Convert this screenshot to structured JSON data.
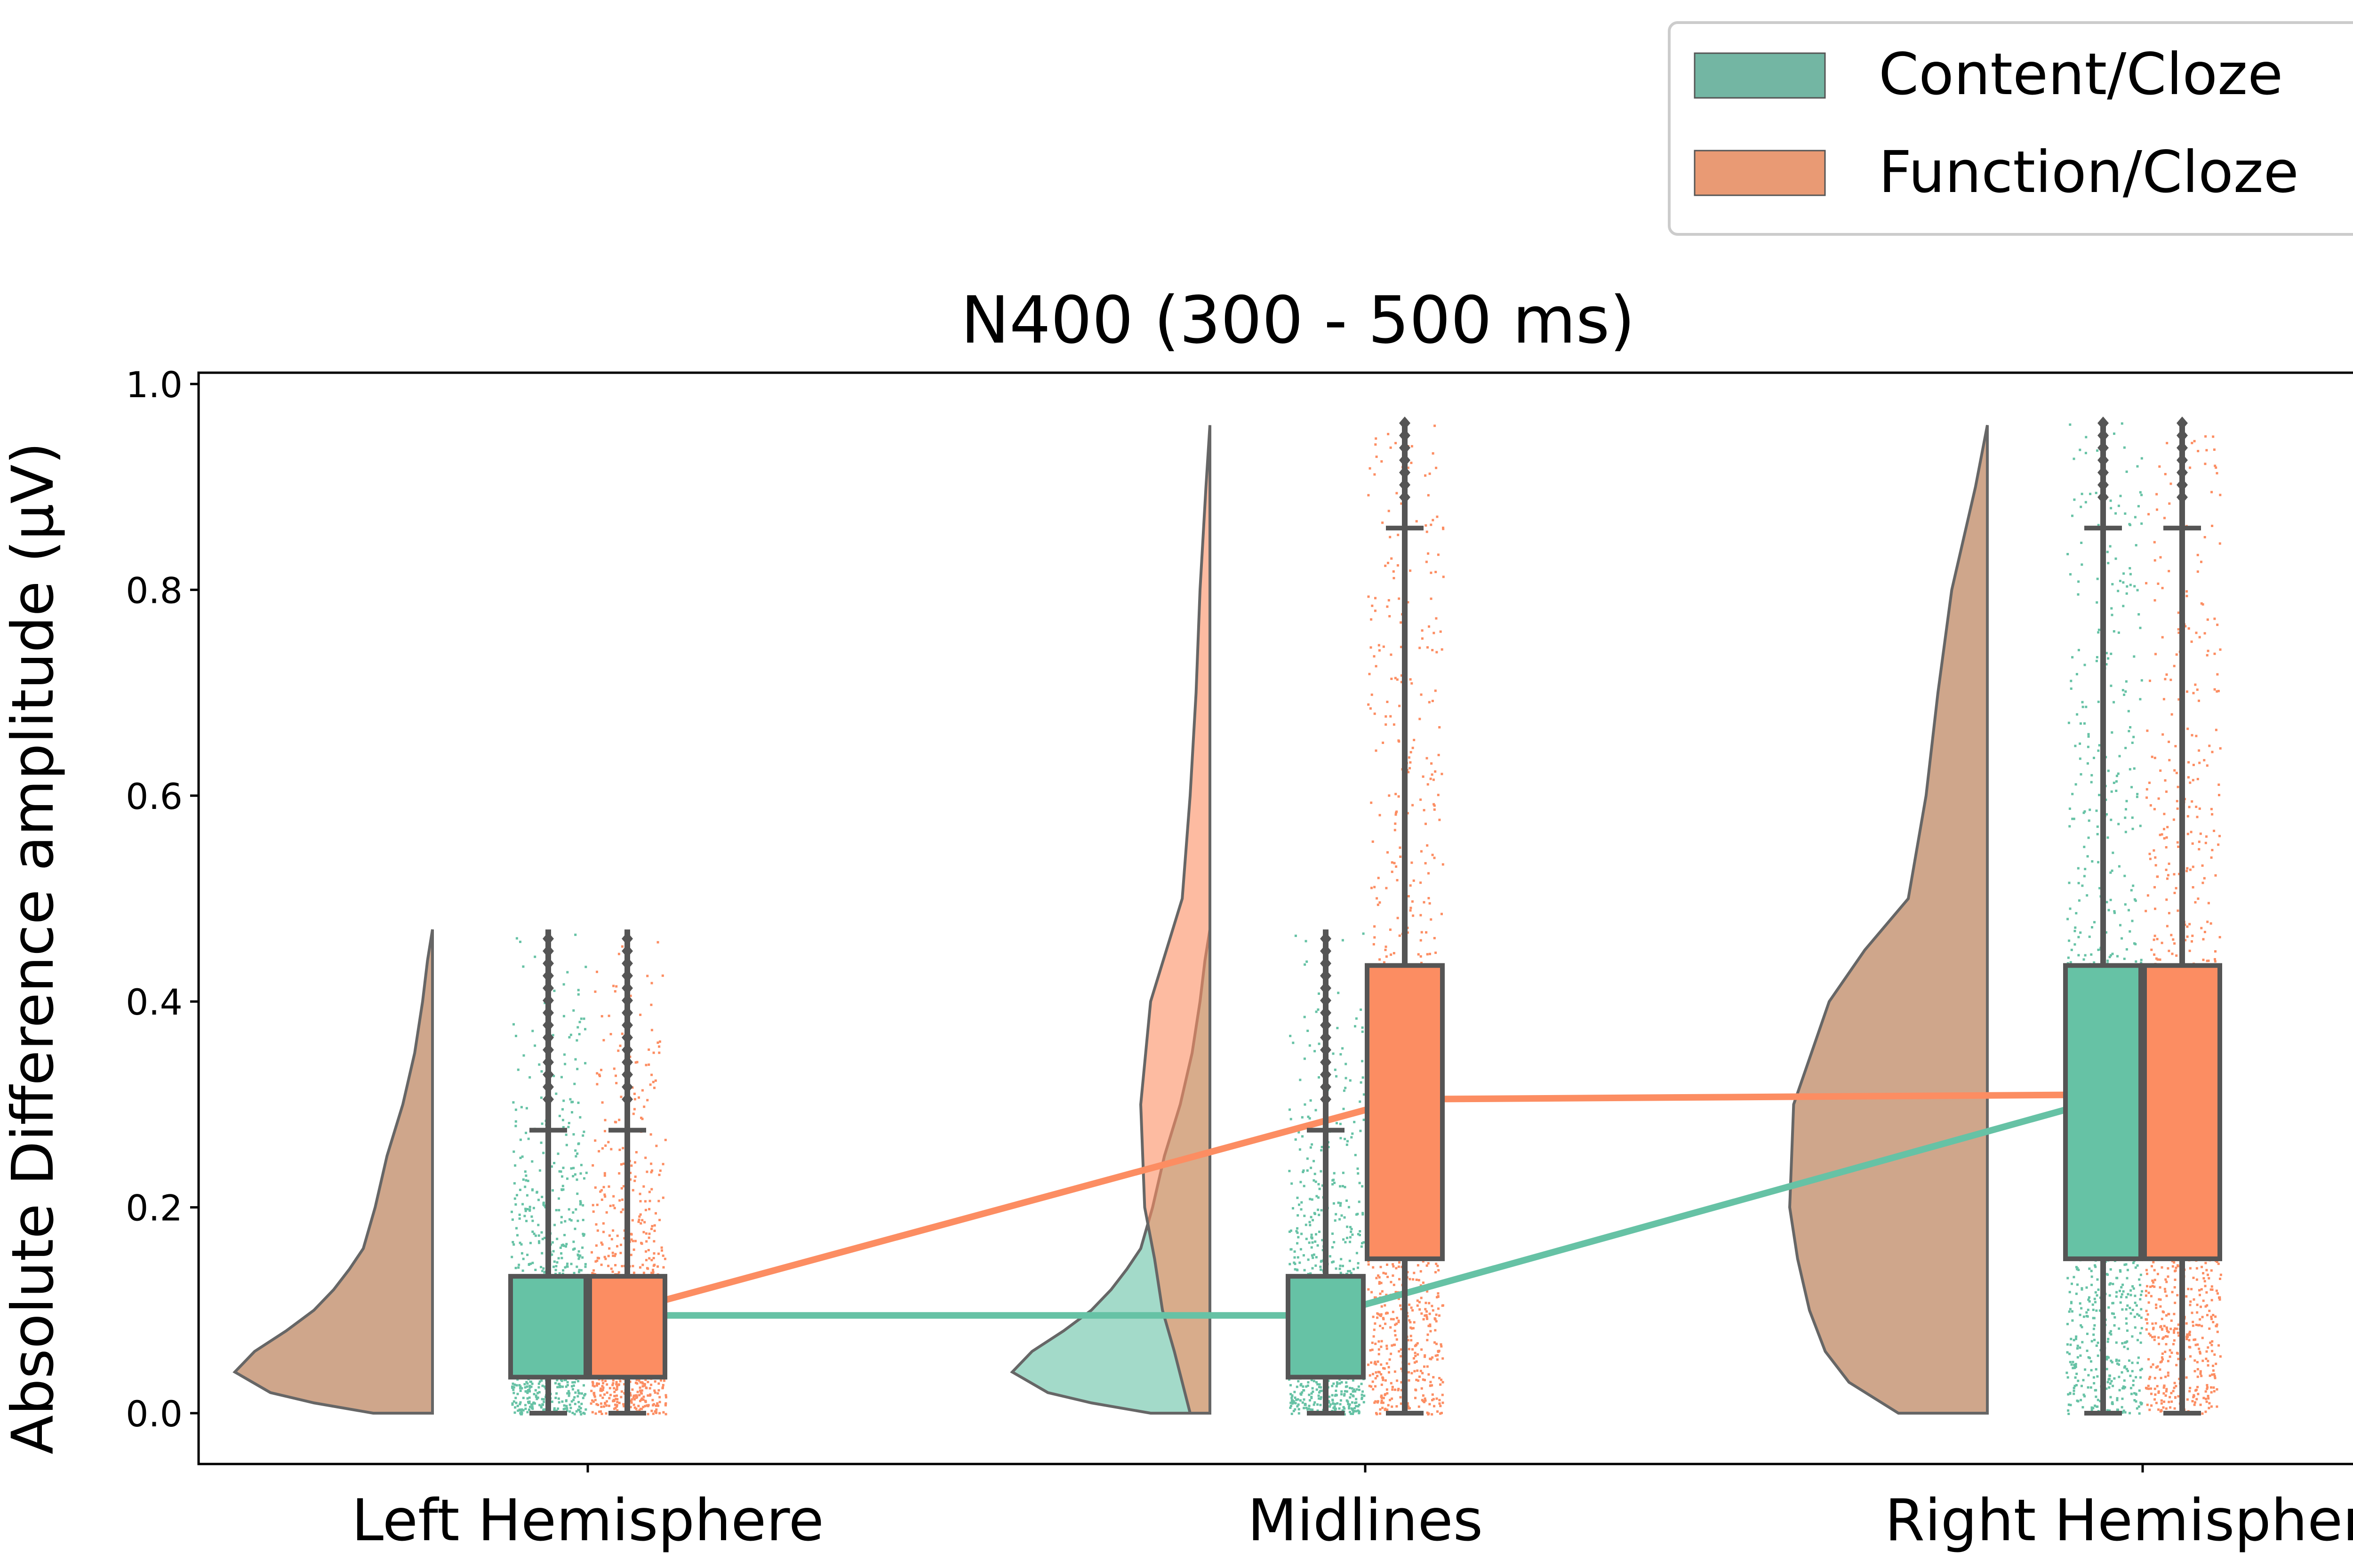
{
  "chart_data": {
    "type": "raincloud",
    "title": "N400 (300 - 500 ms)",
    "xlabel": "",
    "ylabel": "Absolute Difference amplitude (μV)",
    "categories": [
      "Left Hemisphere",
      "Midlines",
      "Right Hemisphere"
    ],
    "ylim": [
      -0.05,
      1.01
    ],
    "yticks": [
      0.0,
      0.2,
      0.4,
      0.6,
      0.8,
      1.0
    ],
    "ytick_labels": [
      "0.0",
      "0.2",
      "0.4",
      "0.6",
      "0.8",
      "1.0"
    ],
    "grid": false,
    "legend": {
      "position": "top-right",
      "entries": [
        "Content/Cloze",
        "Function/Cloze"
      ]
    },
    "colors": {
      "content": "#66c2a5",
      "function": "#fc8d62",
      "box_edge": "#555555",
      "cloud_overlap": "#cfa68b"
    },
    "series": [
      {
        "name": "Content/Cloze",
        "box": [
          {
            "category": "Left Hemisphere",
            "whisker_low": 0.0,
            "q1": 0.035,
            "median": 0.095,
            "q3": 0.133,
            "whisker_high": 0.275,
            "max": 0.47
          },
          {
            "category": "Midlines",
            "whisker_low": 0.0,
            "q1": 0.035,
            "median": 0.095,
            "q3": 0.133,
            "whisker_high": 0.275,
            "max": 0.47
          },
          {
            "category": "Right Hemisphere",
            "whisker_low": 0.0,
            "q1": 0.15,
            "median": 0.31,
            "q3": 0.435,
            "whisker_high": 0.86,
            "max": 0.965
          }
        ],
        "mean_line": [
          0.095,
          0.095,
          0.305
        ]
      },
      {
        "name": "Function/Cloze",
        "box": [
          {
            "category": "Left Hemisphere",
            "whisker_low": 0.0,
            "q1": 0.035,
            "median": 0.095,
            "q3": 0.133,
            "whisker_high": 0.275,
            "max": 0.47
          },
          {
            "category": "Midlines",
            "whisker_low": 0.0,
            "q1": 0.15,
            "median": 0.31,
            "q3": 0.435,
            "whisker_high": 0.86,
            "max": 0.965
          },
          {
            "category": "Right Hemisphere",
            "whisker_low": 0.0,
            "q1": 0.15,
            "median": 0.31,
            "q3": 0.435,
            "whisker_high": 0.86,
            "max": 0.965
          }
        ],
        "mean_line": [
          0.1,
          0.305,
          0.31
        ]
      }
    ],
    "density_profiles": [
      {
        "category": "Left Hemisphere",
        "series": "Content/Cloze",
        "style": "overlap",
        "y": [
          0.0,
          0.01,
          0.02,
          0.04,
          0.06,
          0.08,
          0.1,
          0.12,
          0.14,
          0.16,
          0.2,
          0.25,
          0.3,
          0.35,
          0.4,
          0.44,
          0.47
        ],
        "density": [
          0.3,
          0.6,
          0.82,
          1.0,
          0.9,
          0.74,
          0.6,
          0.5,
          0.42,
          0.35,
          0.29,
          0.23,
          0.15,
          0.09,
          0.05,
          0.025,
          0.0
        ]
      },
      {
        "category": "Midlines",
        "series": "Content/Cloze",
        "style": "content",
        "y": [
          0.0,
          0.01,
          0.02,
          0.04,
          0.06,
          0.08,
          0.1,
          0.12,
          0.14,
          0.16,
          0.2,
          0.25,
          0.3,
          0.35,
          0.4,
          0.44,
          0.47
        ],
        "density": [
          0.3,
          0.6,
          0.82,
          1.0,
          0.9,
          0.74,
          0.6,
          0.5,
          0.42,
          0.35,
          0.29,
          0.23,
          0.15,
          0.09,
          0.05,
          0.025,
          0.0
        ]
      },
      {
        "category": "Midlines",
        "series": "Function/Cloze",
        "style": "function",
        "y": [
          0.0,
          0.03,
          0.06,
          0.1,
          0.15,
          0.2,
          0.3,
          0.4,
          0.45,
          0.5,
          0.6,
          0.7,
          0.8,
          0.9,
          0.96
        ],
        "density": [
          0.1,
          0.14,
          0.18,
          0.24,
          0.28,
          0.33,
          0.35,
          0.3,
          0.22,
          0.14,
          0.1,
          0.07,
          0.05,
          0.02,
          0.0
        ]
      },
      {
        "category": "Right Hemisphere",
        "series": "Function/Cloze",
        "style": "overlap",
        "y": [
          0.0,
          0.03,
          0.06,
          0.1,
          0.15,
          0.2,
          0.3,
          0.4,
          0.45,
          0.5,
          0.6,
          0.7,
          0.8,
          0.9,
          0.96
        ],
        "density": [
          0.45,
          0.7,
          0.82,
          0.9,
          0.96,
          1.0,
          0.98,
          0.8,
          0.62,
          0.4,
          0.31,
          0.25,
          0.18,
          0.06,
          0.0
        ]
      }
    ]
  }
}
